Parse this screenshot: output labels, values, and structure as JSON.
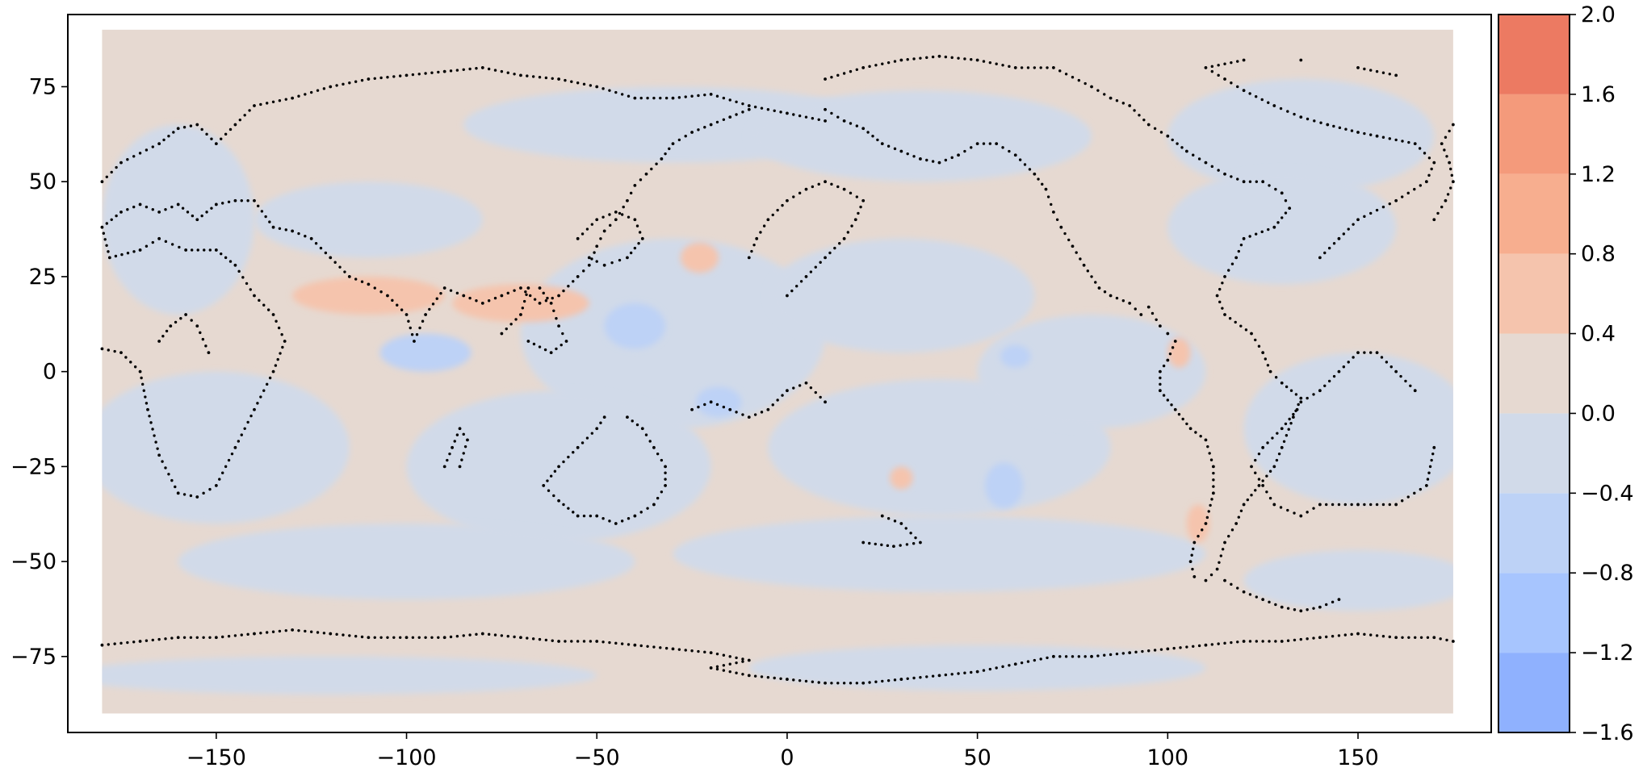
{
  "map": {
    "type": "filled-contour",
    "projection": "equirectangular",
    "xlim": [
      -189,
      185
    ],
    "ylim": [
      -95,
      94
    ],
    "data_extent": {
      "lon": [
        -180,
        175
      ],
      "lat": [
        -90,
        90
      ]
    },
    "x_ticks": [
      {
        "value": -150,
        "label": "−150"
      },
      {
        "value": -100,
        "label": "−100"
      },
      {
        "value": -50,
        "label": "−50"
      },
      {
        "value": 0,
        "label": "0"
      },
      {
        "value": 50,
        "label": "50"
      },
      {
        "value": 100,
        "label": "100"
      },
      {
        "value": 150,
        "label": "150"
      }
    ],
    "y_ticks": [
      {
        "value": 75,
        "label": "75"
      },
      {
        "value": 50,
        "label": "50"
      },
      {
        "value": 25,
        "label": "25"
      },
      {
        "value": 0,
        "label": "0"
      },
      {
        "value": -25,
        "label": "−25"
      },
      {
        "value": -50,
        "label": "−50"
      },
      {
        "value": -75,
        "label": "−75"
      }
    ],
    "colormap": "coolwarm",
    "background_color": "#e6d9d1",
    "blue_regions": [
      {
        "cx": -30,
        "cy": 65,
        "rx": 55,
        "ry": 10,
        "value": -0.2
      },
      {
        "cx": 35,
        "cy": 62,
        "rx": 45,
        "ry": 12,
        "value": -0.2
      },
      {
        "cx": 135,
        "cy": 62,
        "rx": 35,
        "ry": 15,
        "value": -0.2
      },
      {
        "cx": -160,
        "cy": 40,
        "rx": 20,
        "ry": 25,
        "value": -0.2
      },
      {
        "cx": -30,
        "cy": 10,
        "rx": 40,
        "ry": 25,
        "value": -0.2
      },
      {
        "cx": 30,
        "cy": 20,
        "rx": 35,
        "ry": 15,
        "value": -0.2
      },
      {
        "cx": 130,
        "cy": 38,
        "rx": 30,
        "ry": 15,
        "value": -0.2
      },
      {
        "cx": -150,
        "cy": -20,
        "rx": 35,
        "ry": 20,
        "value": -0.2
      },
      {
        "cx": -60,
        "cy": -25,
        "rx": 40,
        "ry": 20,
        "value": -0.2
      },
      {
        "cx": 40,
        "cy": -20,
        "rx": 45,
        "ry": 18,
        "value": -0.2
      },
      {
        "cx": 150,
        "cy": -15,
        "rx": 30,
        "ry": 20,
        "value": -0.2
      },
      {
        "cx": -100,
        "cy": -50,
        "rx": 60,
        "ry": 10,
        "value": -0.2
      },
      {
        "cx": 40,
        "cy": -48,
        "rx": 70,
        "ry": 10,
        "value": -0.2
      },
      {
        "cx": 150,
        "cy": -55,
        "rx": 30,
        "ry": 8,
        "value": -0.2
      },
      {
        "cx": -120,
        "cy": -80,
        "rx": 70,
        "ry": 5,
        "value": -0.2
      },
      {
        "cx": 50,
        "cy": -78,
        "rx": 60,
        "ry": 6,
        "value": -0.2
      },
      {
        "cx": -110,
        "cy": 40,
        "rx": 30,
        "ry": 10,
        "value": -0.2
      },
      {
        "cx": 80,
        "cy": 0,
        "rx": 30,
        "ry": 15,
        "value": -0.2
      },
      {
        "cx": -95,
        "cy": 5,
        "rx": 12,
        "ry": 5,
        "value": -0.6
      },
      {
        "cx": -40,
        "cy": 12,
        "rx": 8,
        "ry": 6,
        "value": -0.6
      },
      {
        "cx": 60,
        "cy": 4,
        "rx": 4,
        "ry": 3,
        "value": -0.6
      },
      {
        "cx": 57,
        "cy": -30,
        "rx": 5,
        "ry": 6,
        "value": -0.6
      },
      {
        "cx": -18,
        "cy": -8,
        "rx": 6,
        "ry": 4,
        "value": -0.6
      }
    ],
    "red_regions": [
      {
        "cx": -110,
        "cy": 20,
        "rx": 20,
        "ry": 5,
        "value": 0.6
      },
      {
        "cx": -70,
        "cy": 18,
        "rx": 18,
        "ry": 5,
        "value": 0.6
      },
      {
        "cx": -23,
        "cy": 30,
        "rx": 5,
        "ry": 4,
        "value": 0.6
      },
      {
        "cx": 103,
        "cy": 5,
        "rx": 3,
        "ry": 4,
        "value": 0.6
      },
      {
        "cx": 108,
        "cy": -40,
        "rx": 3,
        "ry": 5,
        "value": 0.6
      },
      {
        "cx": 30,
        "cy": -28,
        "rx": 3,
        "ry": 3,
        "value": 0.6
      }
    ],
    "coastline_points": [
      [
        -180,
        -72
      ],
      [
        -170,
        -71
      ],
      [
        -160,
        -70
      ],
      [
        -150,
        -70
      ],
      [
        -140,
        -69
      ],
      [
        -130,
        -68
      ],
      [
        -120,
        -69
      ],
      [
        -110,
        -70
      ],
      [
        -100,
        -70
      ],
      [
        -90,
        -70
      ],
      [
        -80,
        -69
      ],
      [
        -70,
        -70
      ],
      [
        -60,
        -71
      ],
      [
        -50,
        -71
      ],
      [
        -40,
        -72
      ],
      [
        -30,
        -73
      ],
      [
        -20,
        -74
      ],
      [
        -10,
        -76
      ],
      [
        -20,
        -78
      ],
      [
        -10,
        -80
      ],
      [
        0,
        -81
      ],
      [
        10,
        -82
      ],
      [
        20,
        -82
      ],
      [
        30,
        -81
      ],
      [
        40,
        -80
      ],
      [
        50,
        -79
      ],
      [
        60,
        -77
      ],
      [
        70,
        -75
      ],
      [
        80,
        -75
      ],
      [
        90,
        -74
      ],
      [
        100,
        -73
      ],
      [
        110,
        -72
      ],
      [
        120,
        -71
      ],
      [
        130,
        -71
      ],
      [
        140,
        -70
      ],
      [
        150,
        -69
      ],
      [
        160,
        -70
      ],
      [
        170,
        -70
      ],
      [
        175,
        -71
      ],
      [
        -180,
        6
      ],
      [
        -175,
        5
      ],
      [
        -170,
        0
      ],
      [
        -168,
        -10
      ],
      [
        -165,
        -22
      ],
      [
        -160,
        -32
      ],
      [
        -155,
        -33
      ],
      [
        -150,
        -30
      ],
      [
        -145,
        -20
      ],
      [
        -140,
        -10
      ],
      [
        -135,
        0
      ],
      [
        -132,
        8
      ],
      [
        -135,
        15
      ],
      [
        -140,
        20
      ],
      [
        -145,
        28
      ],
      [
        -150,
        32
      ],
      [
        -158,
        32
      ],
      [
        -165,
        35
      ],
      [
        -170,
        32
      ],
      [
        -178,
        30
      ],
      [
        -180,
        38
      ],
      [
        -175,
        42
      ],
      [
        -170,
        44
      ],
      [
        -165,
        42
      ],
      [
        -160,
        44
      ],
      [
        -155,
        40
      ],
      [
        -150,
        44
      ],
      [
        -145,
        45
      ],
      [
        -140,
        45
      ],
      [
        -135,
        38
      ],
      [
        -130,
        37
      ],
      [
        -125,
        35
      ],
      [
        -120,
        30
      ],
      [
        -115,
        25
      ],
      [
        -110,
        23
      ],
      [
        -105,
        20
      ],
      [
        -100,
        15
      ],
      [
        -98,
        8
      ],
      [
        -95,
        15
      ],
      [
        -90,
        22
      ],
      [
        -85,
        20
      ],
      [
        -80,
        18
      ],
      [
        -75,
        20
      ],
      [
        -70,
        22
      ],
      [
        -65,
        18
      ],
      [
        -60,
        20
      ],
      [
        -55,
        25
      ],
      [
        -52,
        28
      ],
      [
        -50,
        33
      ],
      [
        -48,
        37
      ],
      [
        -45,
        40
      ],
      [
        -42,
        45
      ],
      [
        -40,
        49
      ],
      [
        -37,
        52
      ],
      [
        -33,
        56
      ],
      [
        -30,
        60
      ],
      [
        -25,
        63
      ],
      [
        -20,
        65
      ],
      [
        -15,
        67
      ],
      [
        -10,
        69
      ],
      [
        -180,
        50
      ],
      [
        -175,
        55
      ],
      [
        -165,
        60
      ],
      [
        -160,
        64
      ],
      [
        -155,
        65
      ],
      [
        -150,
        60
      ],
      [
        -145,
        65
      ],
      [
        -140,
        70
      ],
      [
        -130,
        72
      ],
      [
        -120,
        75
      ],
      [
        -110,
        77
      ],
      [
        -100,
        78
      ],
      [
        -90,
        79
      ],
      [
        -80,
        80
      ],
      [
        -70,
        78
      ],
      [
        -60,
        77
      ],
      [
        -50,
        75
      ],
      [
        -40,
        72
      ],
      [
        -30,
        72
      ],
      [
        -20,
        73
      ],
      [
        -10,
        70
      ],
      [
        0,
        68
      ],
      [
        10,
        66
      ],
      [
        -48,
        -12
      ],
      [
        -50,
        -15
      ],
      [
        -55,
        -20
      ],
      [
        -60,
        -25
      ],
      [
        -64,
        -30
      ],
      [
        -60,
        -34
      ],
      [
        -55,
        -38
      ],
      [
        -50,
        -38
      ],
      [
        -45,
        -40
      ],
      [
        -40,
        -38
      ],
      [
        -35,
        -35
      ],
      [
        -32,
        -30
      ],
      [
        -32,
        -25
      ],
      [
        -35,
        -20
      ],
      [
        -38,
        -15
      ],
      [
        -42,
        -12
      ],
      [
        25,
        -38
      ],
      [
        30,
        -40
      ],
      [
        35,
        -45
      ],
      [
        28,
        -46
      ],
      [
        20,
        -45
      ],
      [
        10,
        69
      ],
      [
        15,
        66
      ],
      [
        20,
        64
      ],
      [
        25,
        60
      ],
      [
        30,
        58
      ],
      [
        35,
        56
      ],
      [
        40,
        55
      ],
      [
        45,
        57
      ],
      [
        50,
        60
      ],
      [
        55,
        60
      ],
      [
        60,
        57
      ],
      [
        65,
        52
      ],
      [
        68,
        48
      ],
      [
        70,
        42
      ],
      [
        72,
        38
      ],
      [
        75,
        33
      ],
      [
        78,
        28
      ],
      [
        82,
        22
      ],
      [
        85,
        20
      ],
      [
        90,
        18
      ],
      [
        93,
        15
      ],
      [
        95,
        17
      ],
      [
        98,
        12
      ],
      [
        100,
        10
      ],
      [
        102,
        8
      ],
      [
        100,
        3
      ],
      [
        98,
        0
      ],
      [
        98,
        -5
      ],
      [
        102,
        -10
      ],
      [
        106,
        -15
      ],
      [
        110,
        -18
      ],
      [
        112,
        -25
      ],
      [
        112,
        -32
      ],
      [
        110,
        -40
      ],
      [
        107,
        -45
      ],
      [
        106,
        -50
      ],
      [
        107,
        -54
      ],
      [
        110,
        -55
      ],
      [
        113,
        -52
      ],
      [
        115,
        -45
      ],
      [
        118,
        -40
      ],
      [
        120,
        -35
      ],
      [
        124,
        -30
      ],
      [
        128,
        -25
      ],
      [
        130,
        -20
      ],
      [
        133,
        -12
      ],
      [
        135,
        -7
      ],
      [
        130,
        -3
      ],
      [
        127,
        0
      ],
      [
        125,
        5
      ],
      [
        122,
        10
      ],
      [
        115,
        15
      ],
      [
        113,
        20
      ],
      [
        115,
        25
      ],
      [
        118,
        30
      ],
      [
        120,
        35
      ],
      [
        128,
        38
      ],
      [
        132,
        43
      ],
      [
        130,
        47
      ],
      [
        125,
        50
      ],
      [
        120,
        50
      ],
      [
        115,
        52
      ],
      [
        110,
        55
      ],
      [
        105,
        58
      ],
      [
        100,
        62
      ],
      [
        95,
        65
      ],
      [
        90,
        70
      ],
      [
        85,
        72
      ],
      [
        80,
        75
      ],
      [
        70,
        80
      ],
      [
        60,
        80
      ],
      [
        50,
        82
      ],
      [
        40,
        83
      ],
      [
        30,
        82
      ],
      [
        20,
        80
      ],
      [
        10,
        77
      ],
      [
        135,
        -8
      ],
      [
        140,
        -5
      ],
      [
        145,
        0
      ],
      [
        150,
        5
      ],
      [
        155,
        5
      ],
      [
        160,
        0
      ],
      [
        165,
        -5
      ],
      [
        170,
        -20
      ],
      [
        168,
        -30
      ],
      [
        160,
        -35
      ],
      [
        150,
        -35
      ],
      [
        140,
        -35
      ],
      [
        135,
        -38
      ],
      [
        128,
        -35
      ],
      [
        125,
        -30
      ],
      [
        122,
        -25
      ],
      [
        125,
        -20
      ],
      [
        130,
        -15
      ],
      [
        134,
        -10
      ],
      [
        140,
        30
      ],
      [
        145,
        35
      ],
      [
        150,
        40
      ],
      [
        160,
        45
      ],
      [
        168,
        50
      ],
      [
        170,
        55
      ],
      [
        165,
        60
      ],
      [
        155,
        62
      ],
      [
        150,
        63
      ],
      [
        142,
        65
      ],
      [
        135,
        67
      ],
      [
        128,
        70
      ],
      [
        120,
        74
      ],
      [
        115,
        77
      ],
      [
        110,
        80
      ],
      [
        120,
        82
      ],
      [
        135,
        82
      ],
      [
        150,
        80
      ],
      [
        160,
        78
      ],
      [
        -55,
        35
      ],
      [
        -50,
        40
      ],
      [
        -45,
        42
      ],
      [
        -40,
        40
      ],
      [
        -38,
        35
      ],
      [
        -42,
        30
      ],
      [
        -48,
        28
      ],
      [
        -52,
        30
      ],
      [
        -75,
        10
      ],
      [
        -70,
        15
      ],
      [
        -68,
        22
      ],
      [
        -65,
        22
      ],
      [
        -62,
        18
      ],
      [
        -60,
        12
      ],
      [
        -58,
        8
      ],
      [
        -62,
        5
      ],
      [
        -68,
        8
      ],
      [
        -90,
        -25
      ],
      [
        -88,
        -20
      ],
      [
        -86,
        -15
      ],
      [
        -84,
        -18
      ],
      [
        -86,
        -25
      ],
      [
        115,
        -55
      ],
      [
        120,
        -58
      ],
      [
        125,
        -60
      ],
      [
        130,
        -62
      ],
      [
        135,
        -63
      ],
      [
        140,
        -62
      ],
      [
        145,
        -60
      ],
      [
        0,
        20
      ],
      [
        5,
        25
      ],
      [
        10,
        30
      ],
      [
        15,
        35
      ],
      [
        18,
        40
      ],
      [
        20,
        45
      ],
      [
        15,
        48
      ],
      [
        10,
        50
      ],
      [
        5,
        48
      ],
      [
        0,
        45
      ],
      [
        -5,
        40
      ],
      [
        -8,
        35
      ],
      [
        -10,
        30
      ],
      [
        -165,
        8
      ],
      [
        -162,
        12
      ],
      [
        -158,
        15
      ],
      [
        -155,
        12
      ],
      [
        -152,
        5
      ],
      [
        -25,
        -10
      ],
      [
        -20,
        -8
      ],
      [
        -15,
        -10
      ],
      [
        -10,
        -12
      ],
      [
        -5,
        -10
      ],
      [
        0,
        -5
      ],
      [
        5,
        -3
      ],
      [
        10,
        -8
      ],
      [
        170,
        40
      ],
      [
        173,
        45
      ],
      [
        175,
        50
      ],
      [
        174,
        55
      ],
      [
        172,
        60
      ],
      [
        175,
        65
      ]
    ]
  },
  "colorbar": {
    "levels": [
      -1.6,
      -1.2,
      -0.8,
      -0.4,
      0.0,
      0.4,
      0.8,
      1.2,
      1.6,
      2.0
    ],
    "tick_labels": [
      "−1.6",
      "−1.2",
      "−0.8",
      "−0.4",
      "0.0",
      "0.4",
      "0.8",
      "1.2",
      "1.6",
      "2.0"
    ],
    "band_colors": [
      "#8fb1fe",
      "#a7c5fe",
      "#bdd2f6",
      "#d1dae9",
      "#e6d9d1",
      "#f5c4ad",
      "#f7ae8f",
      "#f49a7b",
      "#ec7a62"
    ]
  }
}
